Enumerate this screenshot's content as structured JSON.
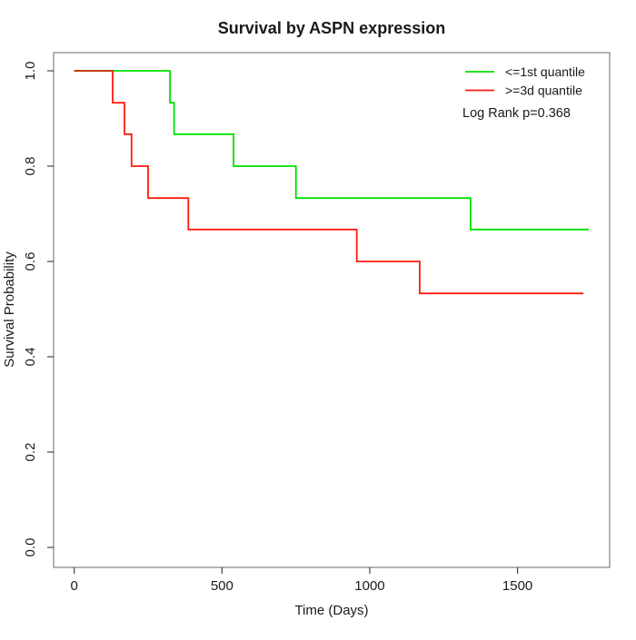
{
  "chart_data": {
    "type": "line",
    "subtype": "kaplan-meier-step",
    "title": "Survival by ASPN expression",
    "xlabel": "Time (Days)",
    "ylabel": "Survival Probability",
    "xlim": [
      0,
      1741
    ],
    "ylim": [
      0.0,
      1.0
    ],
    "xticks": [
      0,
      500,
      1000,
      1500
    ],
    "xtick_labels": [
      "0",
      "500",
      "1000",
      "1500"
    ],
    "yticks": [
      0.0,
      0.2,
      0.4,
      0.6,
      0.8,
      1.0
    ],
    "ytick_labels": [
      "0.0",
      "0.2",
      "0.4",
      "0.6",
      "0.8",
      "1.0"
    ],
    "grid": false,
    "legend_position": "top-right",
    "annotation": "Log Rank p=0.368",
    "series": [
      {
        "name": "<=1st quantile",
        "color": "#00e000",
        "x": [
          0,
          324,
          338,
          539,
          750,
          1341,
          1741
        ],
        "y": [
          1.0,
          0.933,
          0.867,
          0.8,
          0.733,
          0.667,
          0.667
        ]
      },
      {
        "name": ">=3d quantile",
        "color": "#ff1a0d",
        "x": [
          0,
          130,
          170,
          194,
          250,
          386,
          956,
          1169,
          1723
        ],
        "y": [
          1.0,
          0.933,
          0.867,
          0.8,
          0.733,
          0.667,
          0.6,
          0.533,
          0.533
        ]
      }
    ],
    "overlap_color": "#c43c10",
    "axis_color": "#444444",
    "box_color": "#777777"
  }
}
